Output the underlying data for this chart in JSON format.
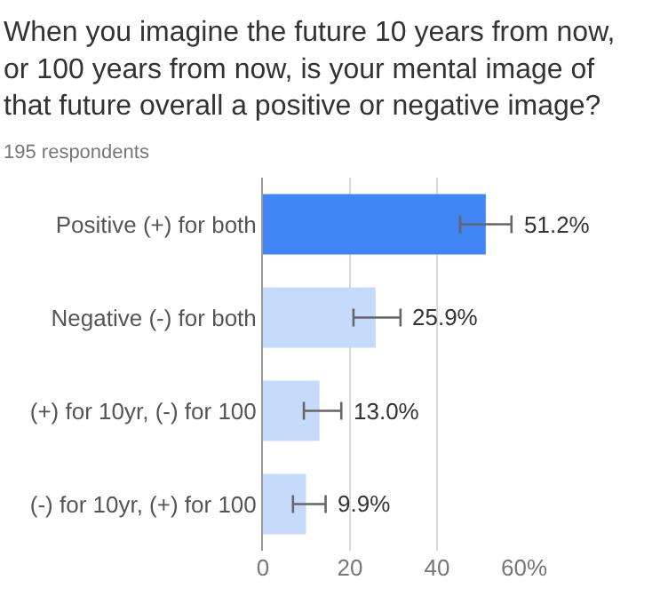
{
  "chart_data": {
    "type": "bar",
    "orientation": "horizontal",
    "title": "When you imagine the future 10 years from now,\nor 100 years from now, is your mental image of\nthat future overall a positive or negative image?",
    "subtitle": "195 respondents",
    "categories": [
      "Positive (+) for both",
      "Negative (-) for both",
      "(+) for 10yr, (-) for 100",
      "(-) for 10yr, (+) for 100"
    ],
    "values": [
      51.2,
      25.9,
      13.0,
      9.9
    ],
    "colors": [
      "#4285f4",
      "#c6dafc",
      "#c6dafc",
      "#c6dafc"
    ],
    "errors": [
      [
        45.3,
        57.1
      ],
      [
        20.8,
        31.6
      ],
      [
        9.4,
        18.0
      ],
      [
        6.9,
        14.4
      ]
    ],
    "value_labels": [
      "51.2%",
      "25.9%",
      "13.0%",
      "9.9%"
    ],
    "xlim": [
      0,
      60
    ],
    "xticks": [
      0,
      20,
      40,
      {
        "value": 60,
        "label": "60%"
      }
    ],
    "grid": "x",
    "legend": false
  }
}
